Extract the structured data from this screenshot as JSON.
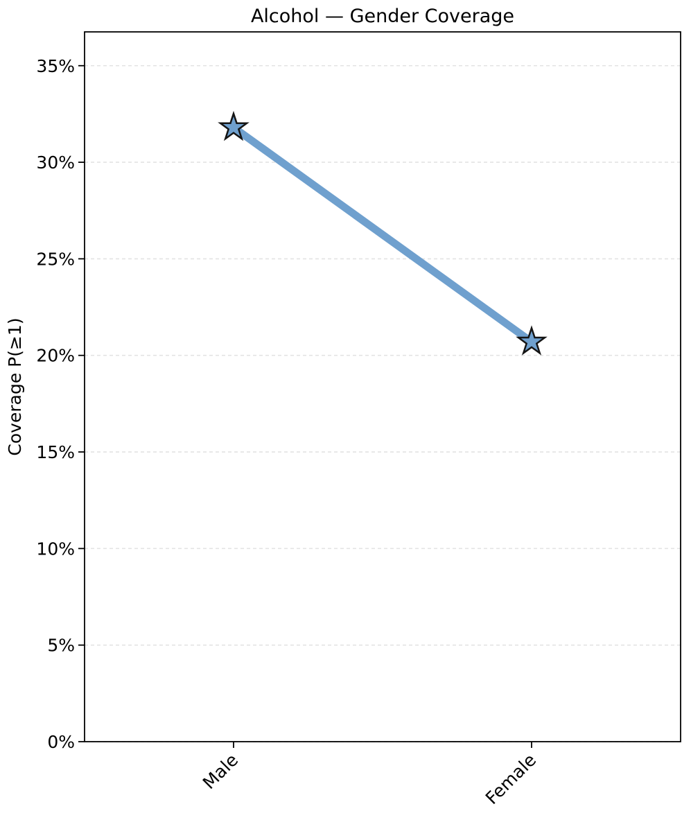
{
  "chart_data": {
    "type": "line",
    "title": "Alcohol — Gender Coverage",
    "xlabel": "",
    "ylabel": "Coverage P(≥1)",
    "categories": [
      "Male",
      "Female"
    ],
    "series": [
      {
        "name": "Coverage",
        "values": [
          31.8,
          20.7
        ]
      }
    ],
    "ylim": [
      0,
      36.75
    ],
    "yticks": [
      0,
      5,
      10,
      15,
      20,
      25,
      30,
      35
    ],
    "ytick_labels": [
      "0%",
      "5%",
      "10%",
      "15%",
      "20%",
      "25%",
      "30%",
      "35%"
    ],
    "grid": "horizontal, dashed, light-gray",
    "legend_position": "none",
    "marker": "star",
    "colors": {
      "line": "#6FA0CE",
      "marker_fill": "#6FA0CE",
      "marker_edge": "#151515",
      "grid": "#e3e3e3",
      "spine": "#000000",
      "text": "#000000",
      "background": "#ffffff"
    }
  }
}
